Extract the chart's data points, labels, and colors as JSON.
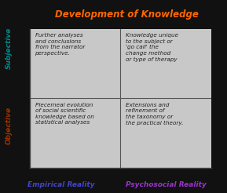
{
  "title": "Development of Knowledge",
  "title_color": "#FF6600",
  "xlabel_left": "Empirical Reality",
  "xlabel_right": "Psychosocial Reality",
  "xlabel_color_left": "#4444CC",
  "xlabel_color_right": "#9933CC",
  "ylabel_top": "Subjective",
  "ylabel_bottom": "Objective",
  "ylabel_top_color": "#008888",
  "ylabel_bottom_color": "#993300",
  "quadrant_texts": [
    "Further analyses\nand conclusions\nfrom the narrator\nperspective.",
    "Knowledge unique\nto the subject or\n'go call' the\nchange method\nor type of therapy",
    "Piecemeal evolution\nof social scientific\nknowledge based on\nstatistical analyses",
    "Extensions and\nrefinement of\nthe taxonomy or\nthe practical theory."
  ],
  "text_color": "#222222",
  "outer_bg_color": "#111111",
  "inner_bg_color": "#c8c8c8",
  "grid_color": "#555555",
  "font_size_text": 5.2,
  "font_size_title": 8.5,
  "font_size_axis": 6.5
}
